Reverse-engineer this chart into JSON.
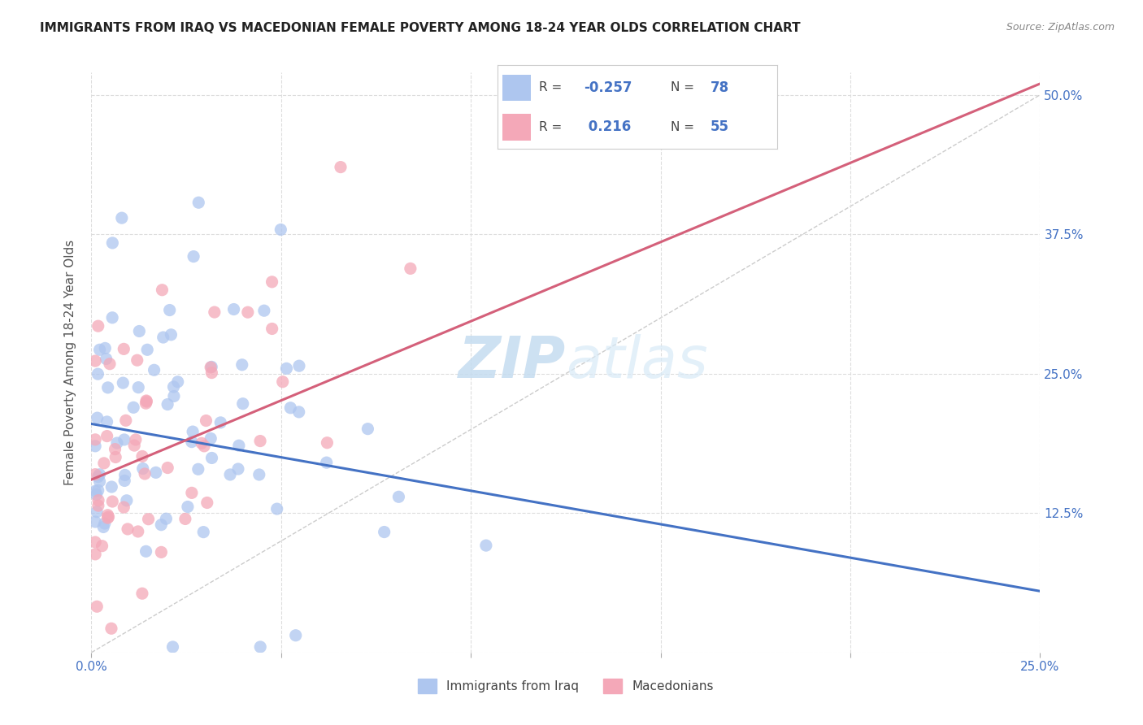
{
  "title": "IMMIGRANTS FROM IRAQ VS MACEDONIAN FEMALE POVERTY AMONG 18-24 YEAR OLDS CORRELATION CHART",
  "source": "Source: ZipAtlas.com",
  "ylabel": "Female Poverty Among 18-24 Year Olds",
  "legend_entries": [
    {
      "label": "Immigrants from Iraq",
      "color": "#aec6ef",
      "R": "-0.257",
      "N": "78"
    },
    {
      "label": "Macedonians",
      "color": "#f4a8b8",
      "R": "0.216",
      "N": "55"
    }
  ],
  "blue_line_x": [
    0.0,
    0.25
  ],
  "blue_line_y": [
    0.205,
    0.055
  ],
  "pink_line_x": [
    0.0,
    0.25
  ],
  "pink_line_y": [
    0.155,
    0.51
  ],
  "diag_line_x": [
    0.0,
    0.25
  ],
  "diag_line_y": [
    0.0,
    0.5
  ],
  "xlim": [
    0.0,
    0.25
  ],
  "ylim": [
    0.0,
    0.52
  ],
  "watermark_zip": "ZIP",
  "watermark_atlas": "atlas",
  "blue_color": "#aec6ef",
  "pink_color": "#f4a8b8",
  "blue_line_color": "#4472c4",
  "pink_line_color": "#d4607a",
  "diag_line_color": "#cccccc",
  "background_color": "#ffffff",
  "seed_blue": 17,
  "seed_pink": 99
}
